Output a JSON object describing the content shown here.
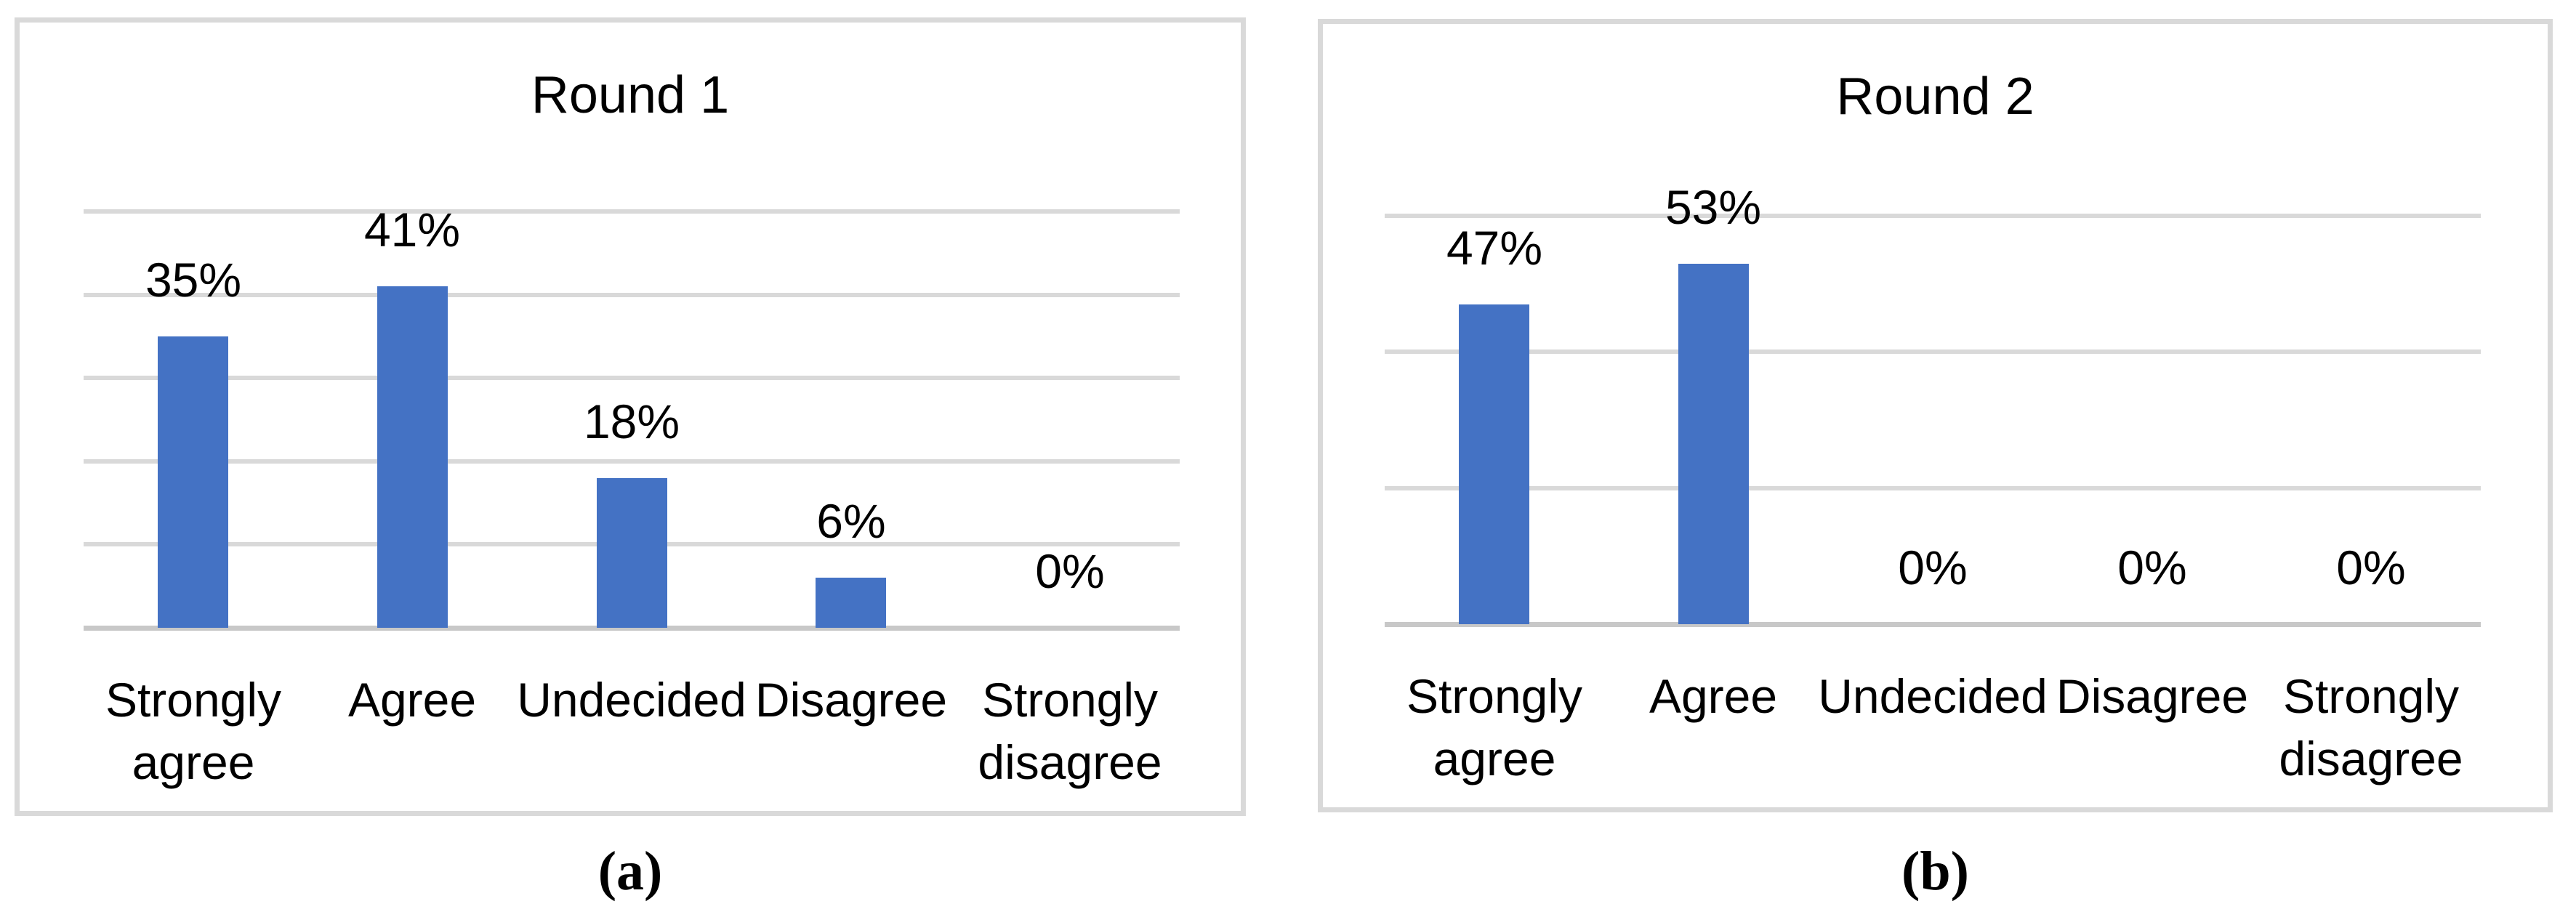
{
  "figure": {
    "captions": [
      "(a)",
      "(b)"
    ]
  },
  "colors": {
    "bar": "#4472C4",
    "gridline": "#D9D9D9",
    "axis_line": "#C8C8C8",
    "panel_border": "#D9D9D9",
    "text": "#000000",
    "background": "#FFFFFF"
  },
  "chart_data": [
    {
      "type": "bar",
      "title": "Round 1",
      "categories": [
        "Strongly agree",
        "Agree",
        "Undecided",
        "Disagree",
        "Strongly disagree"
      ],
      "values": [
        35,
        41,
        18,
        6,
        0
      ],
      "data_labels": [
        "35%",
        "41%",
        "18%",
        "6%",
        "0%"
      ],
      "xlabel": "",
      "ylabel": "",
      "ylim": [
        0,
        50
      ],
      "gridline_step": 10,
      "grid": true,
      "legend": "none",
      "y_tick_labels_visible": false
    },
    {
      "type": "bar",
      "title": "Round 2",
      "categories": [
        "Strongly agree",
        "Agree",
        "Undecided",
        "Disagree",
        "Strongly disagree"
      ],
      "values": [
        47,
        53,
        0,
        0,
        0
      ],
      "data_labels": [
        "47%",
        "53%",
        "0%",
        "0%",
        "0%"
      ],
      "xlabel": "",
      "ylabel": "",
      "ylim": [
        0,
        60
      ],
      "gridline_step": 20,
      "grid": true,
      "legend": "none",
      "y_tick_labels_visible": false
    }
  ]
}
